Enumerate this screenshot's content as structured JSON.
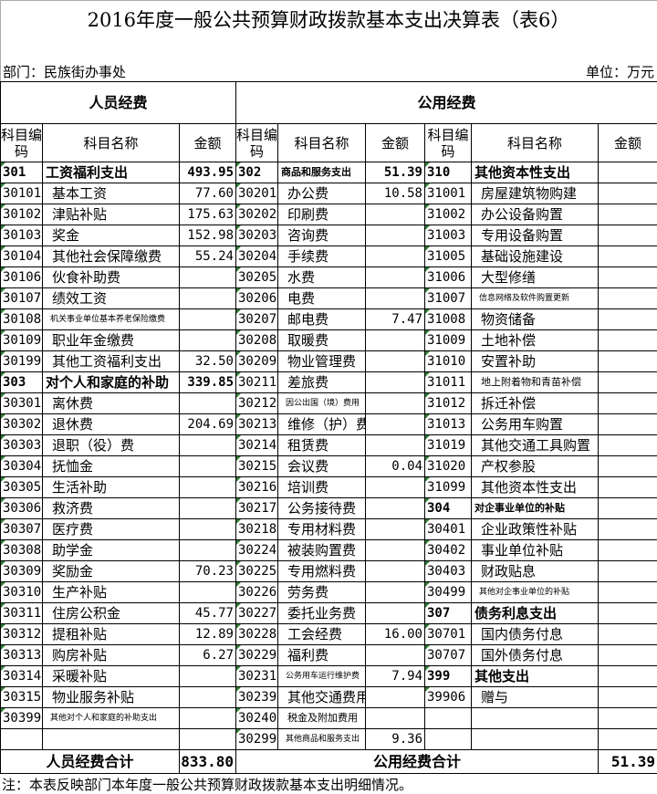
{
  "title": "2016年度一般公共预算财政拨款基本支出决算表（表6）",
  "dept": "部门：民族街办事处",
  "unit": "单位：万元",
  "headers": {
    "personnel": "人员经费",
    "public": "公用经费",
    "code": "科目编码",
    "name": "科目名称",
    "amount": "金额"
  },
  "left": [
    {
      "code": "301",
      "name": "工资福利支出",
      "amount": "493.95",
      "bold": true
    },
    {
      "code": "30101",
      "name": "基本工资",
      "amount": "77.60"
    },
    {
      "code": "30102",
      "name": "津贴补贴",
      "amount": "175.63"
    },
    {
      "code": "30103",
      "name": "奖金",
      "amount": "152.98"
    },
    {
      "code": "30104",
      "name": "其他社会保障缴费",
      "amount": "55.24"
    },
    {
      "code": "30106",
      "name": "伙食补助费",
      "amount": ""
    },
    {
      "code": "30107",
      "name": "绩效工资",
      "amount": ""
    },
    {
      "code": "30108",
      "name": "机关事业单位基本养老保险缴费",
      "amount": "",
      "small": true
    },
    {
      "code": "30109",
      "name": "职业年金缴费",
      "amount": ""
    },
    {
      "code": "30199",
      "name": "其他工资福利支出",
      "amount": "32.50"
    },
    {
      "code": "303",
      "name": "对个人和家庭的补助",
      "amount": "339.85",
      "bold": true
    },
    {
      "code": "30301",
      "name": "离休费",
      "amount": ""
    },
    {
      "code": "30302",
      "name": "退休费",
      "amount": "204.69"
    },
    {
      "code": "30303",
      "name": "退职（役）费",
      "amount": ""
    },
    {
      "code": "30304",
      "name": "抚恤金",
      "amount": ""
    },
    {
      "code": "30305",
      "name": "生活补助",
      "amount": ""
    },
    {
      "code": "30306",
      "name": "救济费",
      "amount": ""
    },
    {
      "code": "30307",
      "name": "医疗费",
      "amount": ""
    },
    {
      "code": "30308",
      "name": "助学金",
      "amount": ""
    },
    {
      "code": "30309",
      "name": "奖励金",
      "amount": "70.23"
    },
    {
      "code": "30310",
      "name": "生产补贴",
      "amount": ""
    },
    {
      "code": "30311",
      "name": "住房公积金",
      "amount": "45.77"
    },
    {
      "code": "30312",
      "name": "提租补贴",
      "amount": "12.89"
    },
    {
      "code": "30313",
      "name": "购房补贴",
      "amount": "6.27"
    },
    {
      "code": "30314",
      "name": "采暖补贴",
      "amount": ""
    },
    {
      "code": "30315",
      "name": "物业服务补贴",
      "amount": ""
    },
    {
      "code": "30399",
      "name": "其他对个人和家庭的补助支出",
      "amount": "",
      "small": true
    },
    {
      "code": "",
      "name": "",
      "amount": ""
    }
  ],
  "middle": [
    {
      "code": "302",
      "name": "商品和服务支出",
      "amount": "51.39",
      "bold": true,
      "small2": true
    },
    {
      "code": "30201",
      "name": "办公费",
      "amount": "10.58"
    },
    {
      "code": "30202",
      "name": "印刷费",
      "amount": ""
    },
    {
      "code": "30203",
      "name": "咨询费",
      "amount": ""
    },
    {
      "code": "30204",
      "name": "手续费",
      "amount": ""
    },
    {
      "code": "30205",
      "name": "水费",
      "amount": ""
    },
    {
      "code": "30206",
      "name": "电费",
      "amount": ""
    },
    {
      "code": "30207",
      "name": "邮电费",
      "amount": "7.47"
    },
    {
      "code": "30208",
      "name": "取暖费",
      "amount": ""
    },
    {
      "code": "30209",
      "name": "物业管理费",
      "amount": ""
    },
    {
      "code": "30211",
      "name": "差旅费",
      "amount": ""
    },
    {
      "code": "30212",
      "name": "因公出国（境）费用",
      "amount": "",
      "small": true
    },
    {
      "code": "30213",
      "name": "维修（护）费",
      "amount": ""
    },
    {
      "code": "30214",
      "name": "租赁费",
      "amount": ""
    },
    {
      "code": "30215",
      "name": "会议费",
      "amount": "0.04"
    },
    {
      "code": "30216",
      "name": "培训费",
      "amount": ""
    },
    {
      "code": "30217",
      "name": "公务接待费",
      "amount": ""
    },
    {
      "code": "30218",
      "name": "专用材料费",
      "amount": ""
    },
    {
      "code": "30224",
      "name": "被装购置费",
      "amount": ""
    },
    {
      "code": "30225",
      "name": "专用燃料费",
      "amount": ""
    },
    {
      "code": "30226",
      "name": "劳务费",
      "amount": ""
    },
    {
      "code": "30227",
      "name": "委托业务费",
      "amount": ""
    },
    {
      "code": "30228",
      "name": "工会经费",
      "amount": "16.00"
    },
    {
      "code": "30229",
      "name": "福利费",
      "amount": ""
    },
    {
      "code": "30231",
      "name": "公务用车运行维护费",
      "amount": "7.94",
      "small": true
    },
    {
      "code": "30239",
      "name": "其他交通费用",
      "amount": ""
    },
    {
      "code": "30240",
      "name": "税金及附加费用",
      "amount": "",
      "small2": true
    },
    {
      "code": "30299",
      "name": "其他商品和服务支出",
      "amount": "9.36",
      "small": true
    }
  ],
  "right": [
    {
      "code": "310",
      "name": "其他资本性支出",
      "amount": "",
      "bold": true
    },
    {
      "code": "31001",
      "name": "房屋建筑物购建",
      "amount": ""
    },
    {
      "code": "31002",
      "name": "办公设备购置",
      "amount": ""
    },
    {
      "code": "31003",
      "name": "专用设备购置",
      "amount": ""
    },
    {
      "code": "31005",
      "name": "基础设施建设",
      "amount": ""
    },
    {
      "code": "31006",
      "name": "大型修缮",
      "amount": ""
    },
    {
      "code": "31007",
      "name": "信息网络及软件购置更新",
      "amount": "",
      "small": true
    },
    {
      "code": "31008",
      "name": "物资储备",
      "amount": ""
    },
    {
      "code": "31009",
      "name": "土地补偿",
      "amount": ""
    },
    {
      "code": "31010",
      "name": "安置补助",
      "amount": ""
    },
    {
      "code": "31011",
      "name": "地上附着物和青苗补偿",
      "amount": "",
      "small2": true
    },
    {
      "code": "31012",
      "name": "拆迁补偿",
      "amount": ""
    },
    {
      "code": "31013",
      "name": "公务用车购置",
      "amount": ""
    },
    {
      "code": "31019",
      "name": "其他交通工具购置",
      "amount": ""
    },
    {
      "code": "31020",
      "name": "产权参股",
      "amount": ""
    },
    {
      "code": "31099",
      "name": "其他资本性支出",
      "amount": ""
    },
    {
      "code": "304",
      "name": "对企事业单位的补贴",
      "amount": "",
      "bold": true,
      "small2": true
    },
    {
      "code": "30401",
      "name": "企业政策性补贴",
      "amount": ""
    },
    {
      "code": "30402",
      "name": "事业单位补贴",
      "amount": ""
    },
    {
      "code": "30403",
      "name": "财政贴息",
      "amount": ""
    },
    {
      "code": "30499",
      "name": "其他对企事业单位的补贴",
      "amount": "",
      "small": true
    },
    {
      "code": "307",
      "name": "债务利息支出",
      "amount": "",
      "bold": true
    },
    {
      "code": "30701",
      "name": "国内债务付息",
      "amount": ""
    },
    {
      "code": "30707",
      "name": "国外债务付息",
      "amount": ""
    },
    {
      "code": "399",
      "name": "其他支出",
      "amount": "",
      "bold": true
    },
    {
      "code": "39906",
      "name": "赠与",
      "amount": ""
    },
    {
      "code": "",
      "name": "",
      "amount": ""
    },
    {
      "code": "",
      "name": "",
      "amount": ""
    }
  ],
  "totals": {
    "personnel_label": "人员经费合计",
    "personnel_amount": "833.80",
    "public_label": "公用经费合计",
    "public_amount": "51.39"
  },
  "note": "注：本表反映部门本年度一般公共预算财政拨款基本支出明细情况。"
}
